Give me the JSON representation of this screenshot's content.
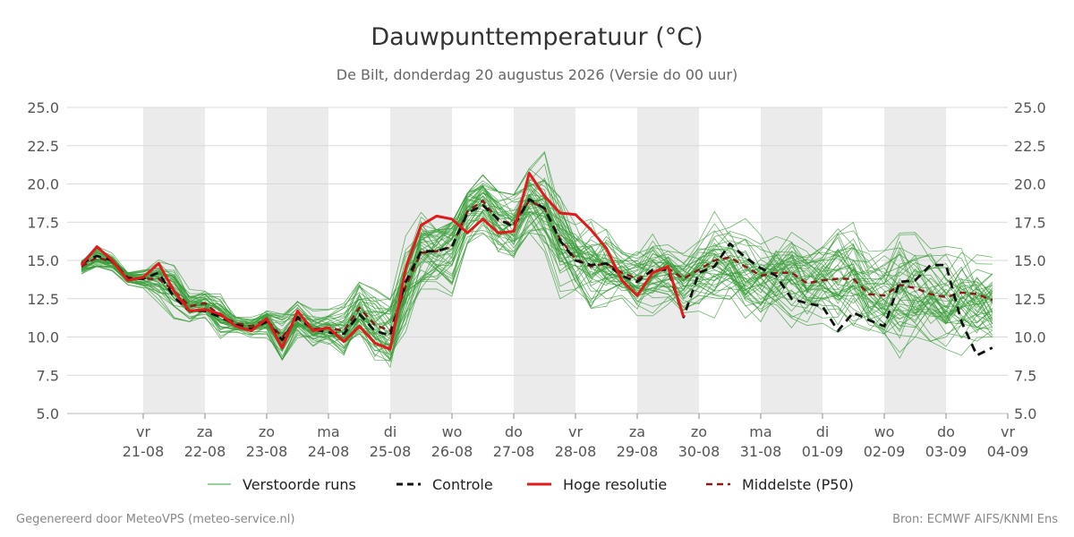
{
  "header": {
    "title": "Dauwpunttemperatuur (°C)",
    "subtitle": "De Bilt, donderdag 20 augustus 2026 (Versie do 00 uur)"
  },
  "footer": {
    "left": "Gegenereerd door MeteoVPS (meteo-service.nl)",
    "right": "Bron: ECMWF AIFS/KNMI Ens"
  },
  "legend": {
    "items": [
      {
        "label": "Verstoorde runs",
        "color": "#5cb85c",
        "style": "thin-solid"
      },
      {
        "label": "Controle",
        "color": "#111111",
        "style": "dashed"
      },
      {
        "label": "Hoge resolutie",
        "color": "#e31a1c",
        "style": "solid"
      },
      {
        "label": "Middelste (P50)",
        "color": "#8b1a1a",
        "style": "dashed"
      }
    ]
  },
  "chart_data": {
    "type": "line",
    "title": "Dauwpunttemperatuur (°C)",
    "subtitle": "De Bilt, donderdag 20 augustus 2026 (Versie do 00 uur)",
    "xlabel": "",
    "ylabel": "",
    "ylim": [
      5.0,
      25.0
    ],
    "y_ticks": [
      "5.0",
      "7.5",
      "10.0",
      "12.5",
      "15.0",
      "17.5",
      "20.0",
      "22.5",
      "25.0"
    ],
    "grid": true,
    "legend_position": "bottom",
    "x_range_days": [
      "2026-08-20 12:00",
      "2026-09-04 00:00"
    ],
    "x_ticks": [
      {
        "day": "vr",
        "date": "21-08"
      },
      {
        "day": "za",
        "date": "22-08"
      },
      {
        "day": "zo",
        "date": "23-08"
      },
      {
        "day": "ma",
        "date": "24-08"
      },
      {
        "day": "di",
        "date": "25-08"
      },
      {
        "day": "wo",
        "date": "26-08"
      },
      {
        "day": "do",
        "date": "27-08"
      },
      {
        "day": "vr",
        "date": "28-08"
      },
      {
        "day": "za",
        "date": "29-08"
      },
      {
        "day": "zo",
        "date": "30-08"
      },
      {
        "day": "ma",
        "date": "31-08"
      },
      {
        "day": "di",
        "date": "01-09"
      },
      {
        "day": "wo",
        "date": "02-09"
      },
      {
        "day": "do",
        "date": "03-09"
      },
      {
        "day": "vr",
        "date": "04-09"
      }
    ],
    "time_step_hours": 6,
    "x_start": "2026-08-20 12:00",
    "shaded_days": [
      "21-08",
      "23-08",
      "25-08",
      "27-08",
      "29-08",
      "31-08",
      "02-09"
    ],
    "series": [
      {
        "name": "Hoge resolutie",
        "color": "#e31a1c",
        "values": [
          14.7,
          15.9,
          15.0,
          13.7,
          13.9,
          14.8,
          13.0,
          11.7,
          11.8,
          11.5,
          10.7,
          10.4,
          11.2,
          9.3,
          11.7,
          10.4,
          10.6,
          9.7,
          10.7,
          9.6,
          9.2,
          14.5,
          17.3,
          17.9,
          17.7,
          16.8,
          17.7,
          16.8,
          16.9,
          20.7,
          19.2,
          18.1,
          18.0,
          17.0,
          15.8,
          13.7,
          12.7,
          14.2,
          14.6,
          11.3
        ]
      },
      {
        "name": "Controle",
        "color": "#111111",
        "values": [
          14.8,
          15.3,
          15.0,
          13.8,
          13.8,
          14.2,
          12.6,
          11.7,
          11.7,
          11.3,
          10.8,
          10.5,
          11.0,
          9.8,
          11.3,
          10.5,
          10.3,
          10.2,
          11.5,
          10.4,
          10.1,
          13.6,
          15.6,
          15.6,
          15.9,
          18.1,
          18.6,
          17.7,
          17.2,
          19.0,
          18.4,
          16.3,
          15.0,
          14.7,
          14.8,
          14.0,
          13.6,
          14.4,
          14.4,
          11.3,
          14.2,
          14.6,
          16.1,
          15.2,
          14.5,
          14.0,
          12.5,
          12.2,
          12.0,
          10.4,
          11.6,
          11.1,
          10.7,
          13.6,
          13.7,
          14.7,
          14.7,
          11.0,
          8.8,
          9.3
        ]
      },
      {
        "name": "Middelste (P50)",
        "color": "#8b1a1a",
        "values": [
          14.6,
          15.2,
          14.9,
          13.9,
          13.8,
          13.8,
          13.0,
          12.0,
          12.2,
          11.4,
          10.9,
          10.7,
          11.1,
          10.0,
          11.2,
          10.5,
          10.6,
          10.4,
          11.9,
          10.8,
          10.4,
          13.3,
          15.5,
          15.6,
          15.9,
          18.2,
          18.9,
          17.6,
          17.4,
          18.9,
          18.4,
          16.4,
          15.1,
          14.6,
          14.8,
          14.2,
          13.8,
          14.3,
          14.5,
          13.8,
          14.4,
          15.0,
          15.2,
          14.6,
          14.0,
          14.2,
          14.2,
          13.5,
          13.7,
          13.8,
          13.8,
          12.8,
          12.7,
          13.4,
          13.2,
          12.8,
          12.6,
          12.9,
          12.8,
          12.4
        ]
      }
    ],
    "perturbed_runs": {
      "name": "Verstoorde runs",
      "color": "#3a9d3a",
      "count": 50,
      "envelope_low": [
        14.1,
        14.6,
        14.3,
        13.2,
        13.0,
        12.2,
        11.0,
        11.0,
        10.8,
        9.6,
        9.7,
        9.6,
        9.5,
        8.5,
        9.6,
        9.0,
        9.3,
        8.0,
        9.0,
        8.2,
        7.8,
        10.2,
        11.3,
        10.9,
        10.1,
        14.0,
        15.6,
        13.3,
        13.1,
        15.0,
        14.0,
        12.5,
        12.6,
        11.2,
        12.0,
        11.8,
        10.5,
        11.0,
        11.2,
        11.0,
        11.0,
        11.0,
        10.8,
        9.9,
        11.0,
        11.2,
        10.4,
        9.8,
        10.6,
        10.3,
        10.0,
        10.0,
        10.2,
        8.4,
        10.0,
        9.7,
        9.2,
        8.8,
        9.5,
        10.0
      ],
      "envelope_high": [
        15.1,
        16.6,
        15.6,
        14.2,
        14.4,
        15.6,
        15.2,
        13.5,
        13.0,
        13.6,
        11.3,
        11.3,
        11.8,
        13.4,
        12.5,
        11.8,
        12.1,
        12.2,
        14.0,
        14.7,
        15.0,
        18.5,
        19.8,
        17.0,
        17.5,
        19.4,
        20.6,
        19.5,
        19.3,
        21.0,
        22.3,
        21.4,
        19.5,
        20.9,
        19.8,
        16.0,
        16.2,
        17.6,
        16.8,
        16.1,
        16.5,
        18.2,
        17.5,
        18.0,
        18.2,
        18.5,
        18.9,
        16.6,
        17.0,
        19.8,
        19.0,
        17.5,
        17.8,
        19.5,
        18.5,
        17.6,
        17.2,
        18.8,
        18.1,
        17.6
      ]
    }
  }
}
